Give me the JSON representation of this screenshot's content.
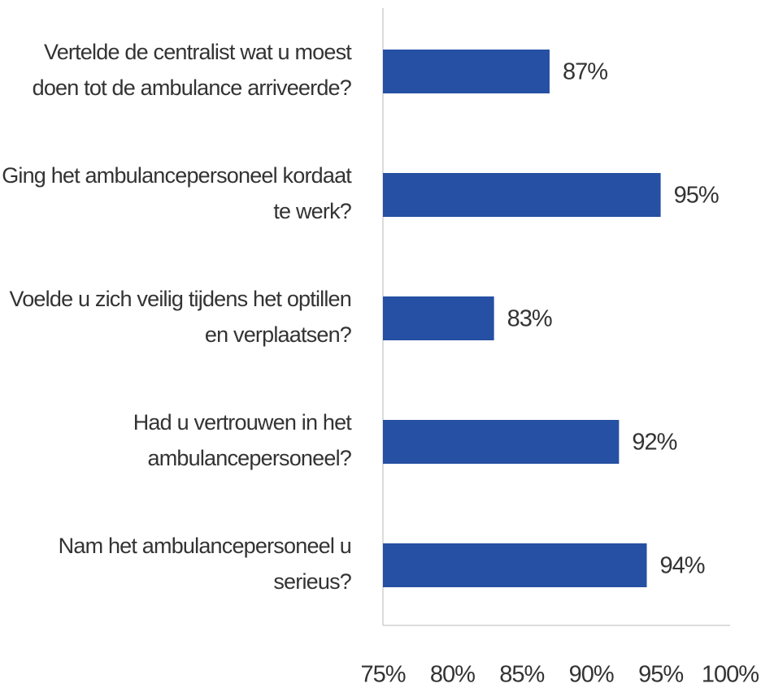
{
  "chart_data": {
    "type": "bar",
    "orientation": "horizontal",
    "categories": [
      "Vertelde de centralist wat u moest doen tot de ambulance arriveerde?",
      "Ging het ambulancepersoneel kordaat te werk?",
      "Voelde u zich veilig tijdens het optillen en verplaatsen?",
      "Had u vertrouwen in het ambulancepersoneel?",
      "Nam het ambulancepersoneel u serieus?"
    ],
    "values": [
      87,
      95,
      83,
      92,
      94
    ],
    "value_labels": [
      "87%",
      "95%",
      "83%",
      "92%",
      "94%"
    ],
    "color": "#2550a3",
    "xlim": [
      75,
      100
    ],
    "xticks": [
      {
        "value": 75,
        "label": "75%"
      },
      {
        "value": 80,
        "label": "80%"
      },
      {
        "value": 85,
        "label": "85%"
      },
      {
        "value": 90,
        "label": "90%"
      },
      {
        "value": 95,
        "label": "95%"
      },
      {
        "value": 100,
        "label": "100%"
      }
    ],
    "grid": false
  }
}
